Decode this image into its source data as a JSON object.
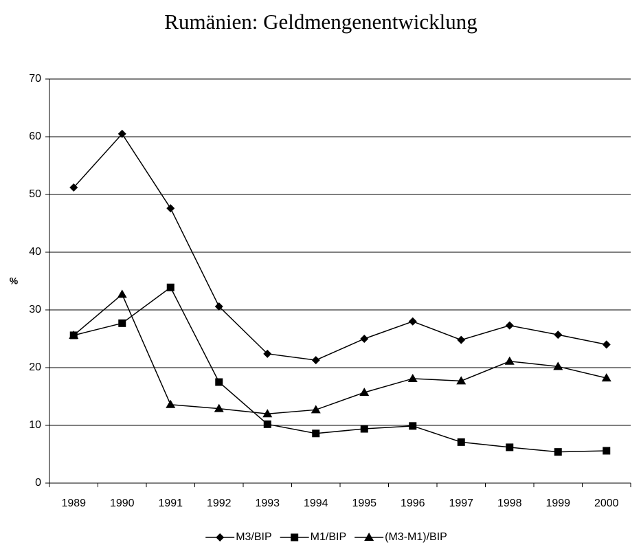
{
  "chart_data": {
    "type": "line",
    "title": "Rumänien: Geldmengenentwicklung",
    "y_label": "%",
    "categories": [
      "1989",
      "1990",
      "1991",
      "1992",
      "1993",
      "1994",
      "1995",
      "1996",
      "1997",
      "1998",
      "1999",
      "2000"
    ],
    "series": [
      {
        "name": "M3/BIP",
        "color": "#000000",
        "marker": "diamond",
        "values": [
          51.2,
          60.5,
          47.6,
          30.6,
          22.4,
          21.3,
          25.0,
          28.0,
          24.8,
          27.3,
          25.7,
          24.0
        ]
      },
      {
        "name": "M1/BIP",
        "color": "#000000",
        "marker": "square",
        "values": [
          25.6,
          27.7,
          33.9,
          17.5,
          10.2,
          8.6,
          9.4,
          9.9,
          7.1,
          6.2,
          5.4,
          5.6
        ]
      },
      {
        "name": "(M3-M1)/BIP",
        "color": "#000000",
        "marker": "triangle",
        "values": [
          25.6,
          32.7,
          13.6,
          12.9,
          12.0,
          12.7,
          15.7,
          18.1,
          17.7,
          21.1,
          20.2,
          18.2
        ]
      }
    ],
    "ylim": [
      0,
      70
    ],
    "yticks": [
      0,
      10,
      20,
      30,
      40,
      50,
      60,
      70
    ],
    "grid": true,
    "legend": "bottom"
  }
}
